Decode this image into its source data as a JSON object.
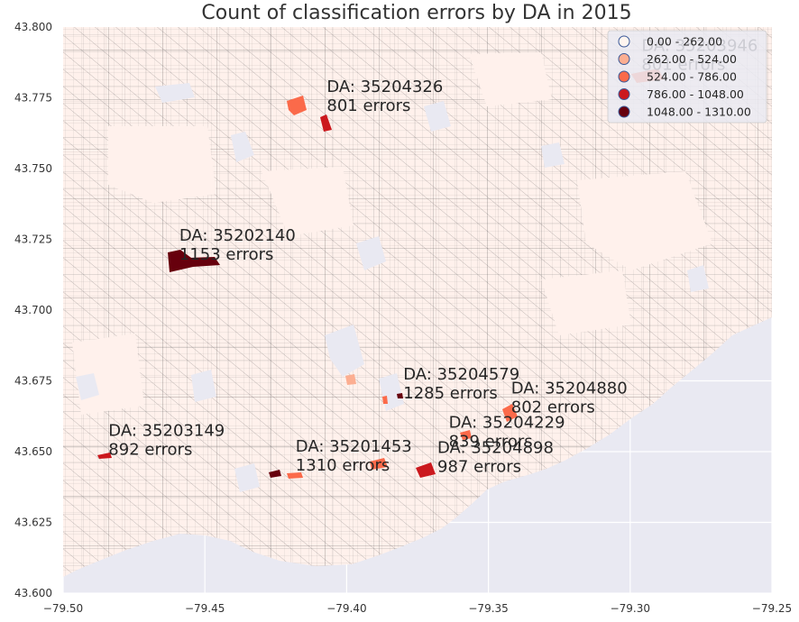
{
  "title": "Count of classification errors by DA in 2015",
  "colors": {
    "background": "#e9e9f2",
    "land": "#fff1ec",
    "boundary": "#555555",
    "grid": "#ffffff"
  },
  "x_ticks": [
    "−79.50",
    "−79.45",
    "−79.40",
    "−79.35",
    "−79.30",
    "−79.25"
  ],
  "y_ticks": [
    "43.800",
    "43.775",
    "43.750",
    "43.725",
    "43.700",
    "43.675",
    "43.650",
    "43.625",
    "43.600"
  ],
  "legend": [
    {
      "label": "0.00 - 262.00",
      "color": "#fff5f0",
      "stroke": "#3b5998"
    },
    {
      "label": "262.00 - 524.00",
      "color": "#fcae91",
      "stroke": "#3b5998"
    },
    {
      "label": "524.00 - 786.00",
      "color": "#fb6a4a",
      "stroke": "#3b5998"
    },
    {
      "label": "786.00 - 1048.00",
      "color": "#cb181d",
      "stroke": "#3b5998"
    },
    {
      "label": "1048.00 - 1310.00",
      "color": "#67000d",
      "stroke": "#3b5998"
    }
  ],
  "chart_data": {
    "type": "map",
    "title": "Count of classification errors by DA in 2015",
    "xlim": [
      -79.5,
      -79.25
    ],
    "ylim": [
      43.6,
      43.8
    ],
    "grid": true,
    "legend_placement": "top-right",
    "bins": [
      "0.00 - 262.00",
      "262.00 - 524.00",
      "524.00 - 786.00",
      "786.00 - 1048.00",
      "1048.00 - 1310.00"
    ],
    "annotations": [
      {
        "da": "DA: 35204326",
        "errors": "801 errors",
        "lon": -79.407,
        "lat": 43.777
      },
      {
        "da": "DA: 35202140",
        "errors": "1153 errors",
        "lon": -79.459,
        "lat": 43.7245
      },
      {
        "da": "DA: 35204579",
        "errors": "1285 errors",
        "lon": -79.38,
        "lat": 43.6755
      },
      {
        "da": "DA: 35204880",
        "errors": "802 errors",
        "lon": -79.342,
        "lat": 43.6705
      },
      {
        "da": "DA: 35204229",
        "errors": "839 errors",
        "lon": -79.364,
        "lat": 43.6585
      },
      {
        "da": "DA: 35204898",
        "errors": "987 errors",
        "lon": -79.368,
        "lat": 43.6495
      },
      {
        "da": "DA: 35203149",
        "errors": "892 errors",
        "lon": -79.484,
        "lat": 43.6555
      },
      {
        "da": "DA: 35201453",
        "errors": "1310 errors",
        "lon": -79.418,
        "lat": 43.65
      },
      {
        "da": "DA: 35203946",
        "errors": "801 errors",
        "lon": -79.296,
        "lat": 43.7915
      }
    ]
  }
}
